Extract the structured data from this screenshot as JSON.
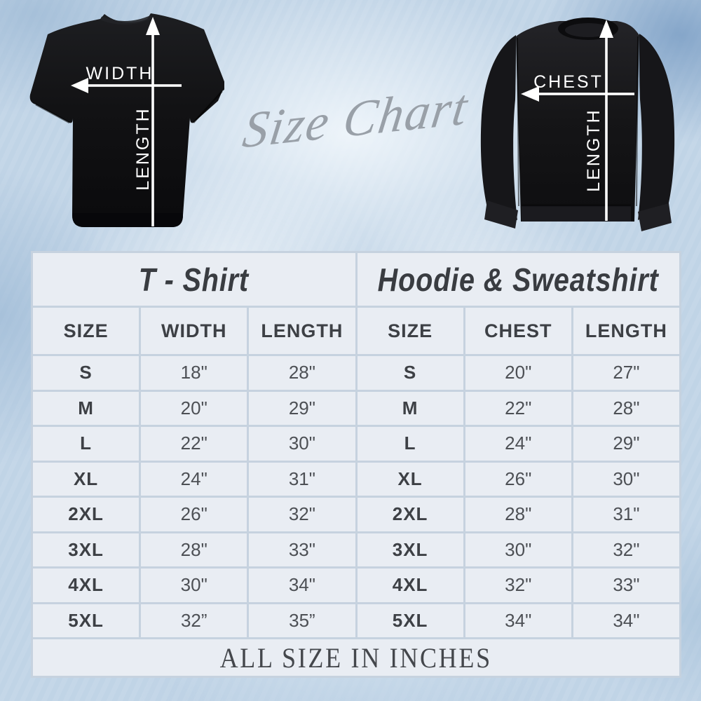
{
  "script_title": "Size Chart",
  "garments": {
    "tshirt": {
      "width_label": "WIDTH",
      "length_label": "LENGTH"
    },
    "hoodie": {
      "chest_label": "CHEST",
      "length_label": "LENGTH"
    }
  },
  "chart_data": [
    {
      "type": "table",
      "title": "T - Shirt",
      "columns": [
        "SIZE",
        "WIDTH",
        "LENGTH"
      ],
      "rows": [
        [
          "S",
          "18\"",
          "28\""
        ],
        [
          "M",
          "20\"",
          "29\""
        ],
        [
          "L",
          "22\"",
          "30\""
        ],
        [
          "XL",
          "24\"",
          "31\""
        ],
        [
          "2XL",
          "26\"",
          "32\""
        ],
        [
          "3XL",
          "28\"",
          "33\""
        ],
        [
          "4XL",
          "30\"",
          "34\""
        ],
        [
          "5XL",
          "32”",
          "35”"
        ]
      ]
    },
    {
      "type": "table",
      "title": "Hoodie & Sweatshirt",
      "columns": [
        "SIZE",
        "CHEST",
        "LENGTH"
      ],
      "rows": [
        [
          "S",
          "20\"",
          "27\""
        ],
        [
          "M",
          "22\"",
          "28\""
        ],
        [
          "L",
          "24\"",
          "29\""
        ],
        [
          "XL",
          "26\"",
          "30\""
        ],
        [
          "2XL",
          "28\"",
          "31\""
        ],
        [
          "3XL",
          "30\"",
          "32\""
        ],
        [
          "4XL",
          "32\"",
          "33\""
        ],
        [
          "5XL",
          "34\"",
          "34\""
        ]
      ]
    }
  ],
  "footer_note": "ALL SIZE IN INCHES",
  "colors": {
    "background_base": "#c2d5e7",
    "table_cell": "#e9edf3",
    "table_grid": "#c6d2df",
    "text_dark": "#3d4045",
    "script_gray": "#99a0a8",
    "garment_black": "#121214",
    "arrow_white": "#ffffff"
  }
}
